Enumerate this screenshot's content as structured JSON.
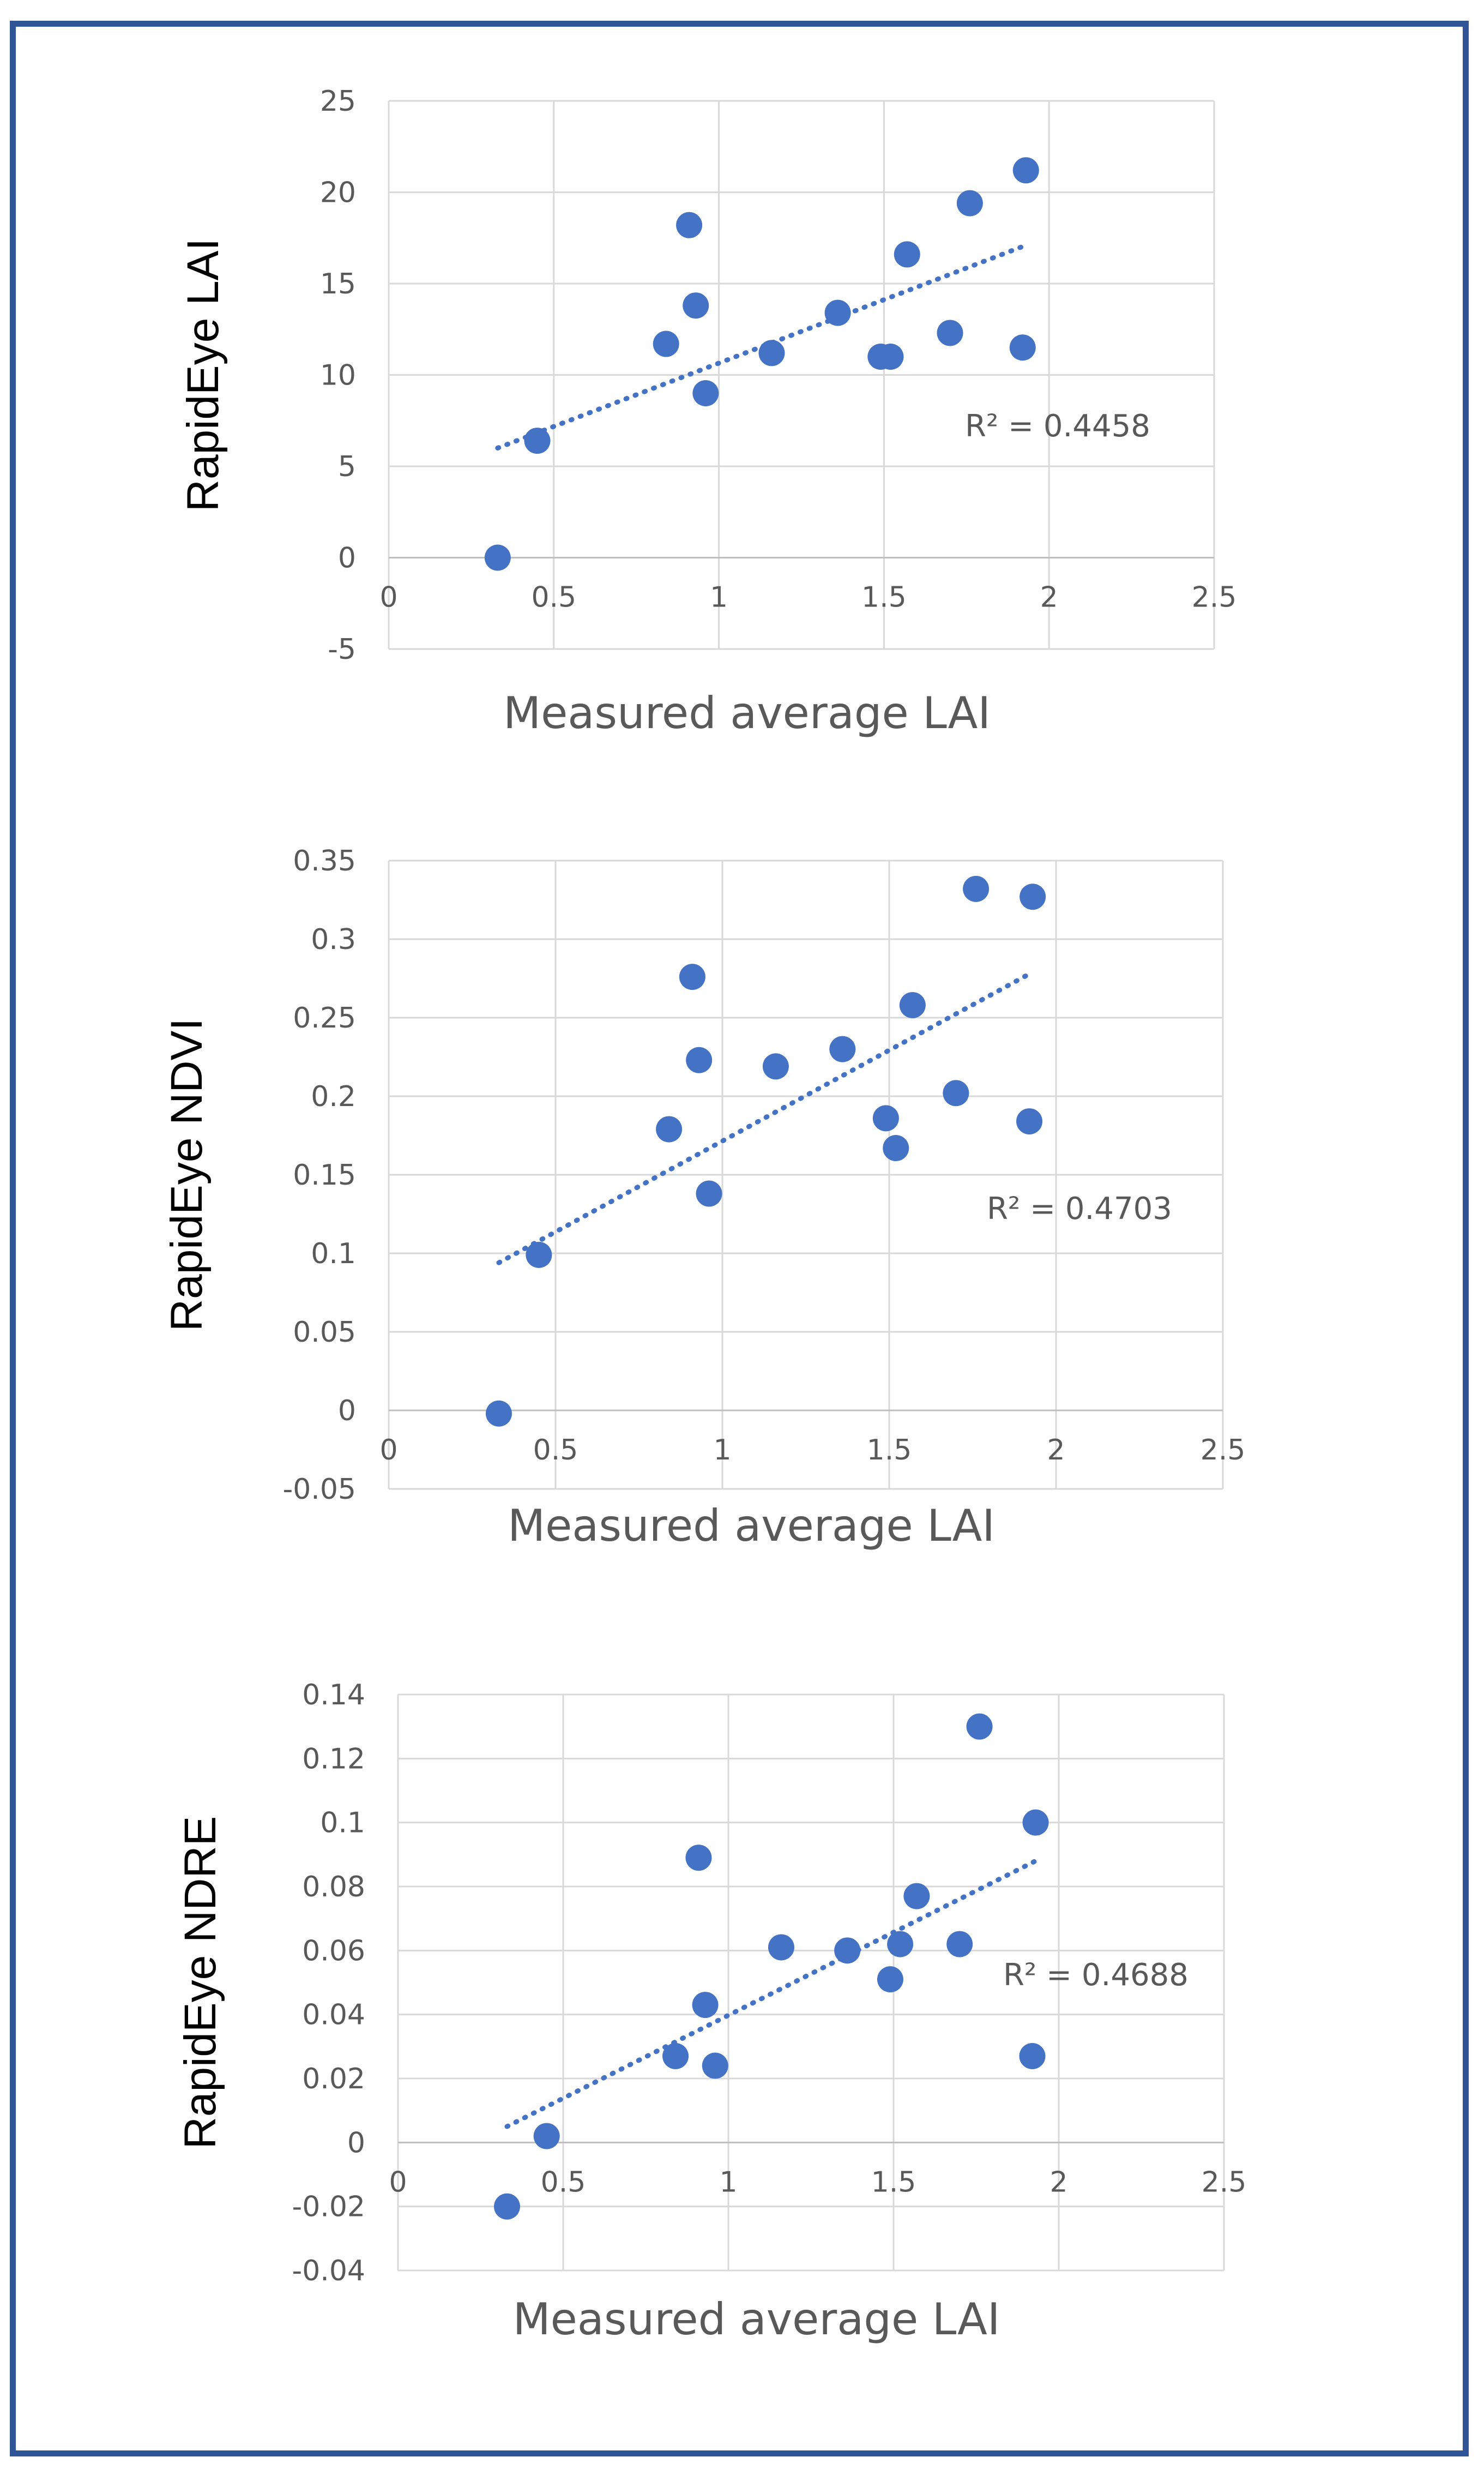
{
  "colors": {
    "frame": "#2f5597",
    "point": "#4472c4",
    "trend": "#4472c4",
    "grid": "#d9d9d9",
    "text": "#595959"
  },
  "chart_data": [
    {
      "type": "scatter",
      "title": "",
      "xlabel": "Measured average LAI",
      "ylabel": "RapidEye LAI",
      "xlim": [
        0,
        2.5
      ],
      "ylim": [
        -5,
        25
      ],
      "x_ticks": [
        "0",
        "0.5",
        "1",
        "1.5",
        "2",
        "2.5"
      ],
      "y_ticks": [
        "-5",
        "0",
        "5",
        "10",
        "15",
        "20",
        "25"
      ],
      "x": [
        0.33,
        0.45,
        0.84,
        0.91,
        0.93,
        0.96,
        1.16,
        1.36,
        1.49,
        1.52,
        1.57,
        1.7,
        1.76,
        1.92,
        1.93
      ],
      "y": [
        0.0,
        6.4,
        11.7,
        18.2,
        13.8,
        9.0,
        11.2,
        13.4,
        11.0,
        11.0,
        16.6,
        12.3,
        19.4,
        11.5,
        21.2
      ],
      "trendline": {
        "type": "linear",
        "x_range": [
          0.33,
          1.93
        ],
        "y_range": [
          6.0,
          17.1
        ],
        "style": "dotted"
      },
      "annotation": "R² = 0.4458",
      "grid": true,
      "legend": "none"
    },
    {
      "type": "scatter",
      "title": "",
      "xlabel": "Measured average LAI",
      "ylabel": "RapidEye NDVI",
      "xlim": [
        0,
        2.5
      ],
      "ylim": [
        -0.05,
        0.35
      ],
      "x_ticks": [
        "0",
        "0.5",
        "1",
        "1.5",
        "2",
        "2.5"
      ],
      "y_ticks": [
        "-0.05",
        "0",
        "0.05",
        "0.1",
        "0.15",
        "0.2",
        "0.25",
        "0.3",
        "0.35"
      ],
      "x": [
        0.33,
        0.45,
        0.84,
        0.91,
        0.93,
        0.96,
        1.16,
        1.36,
        1.49,
        1.52,
        1.57,
        1.7,
        1.76,
        1.92,
        1.93
      ],
      "y": [
        -0.002,
        0.099,
        0.179,
        0.276,
        0.223,
        0.138,
        0.219,
        0.23,
        0.186,
        0.167,
        0.258,
        0.202,
        0.332,
        0.184,
        0.327
      ],
      "trendline": {
        "type": "linear",
        "x_range": [
          0.33,
          1.93
        ],
        "y_range": [
          0.094,
          0.279
        ],
        "style": "dotted"
      },
      "annotation": "R² = 0.4703",
      "grid": true,
      "legend": "none"
    },
    {
      "type": "scatter",
      "title": "",
      "xlabel": "Measured average LAI",
      "ylabel": "RapidEye NDRE",
      "xlim": [
        0,
        2.5
      ],
      "ylim": [
        -0.04,
        0.14
      ],
      "x_ticks": [
        "0",
        "0.5",
        "1",
        "1.5",
        "2",
        "2.5"
      ],
      "y_ticks": [
        "-0.04",
        "-0.02",
        "0",
        "0.02",
        "0.04",
        "0.06",
        "0.08",
        "0.1",
        "0.12",
        "0.14"
      ],
      "x": [
        0.33,
        0.45,
        0.84,
        0.91,
        0.93,
        0.96,
        1.16,
        1.36,
        1.49,
        1.52,
        1.57,
        1.7,
        1.76,
        1.92,
        1.93
      ],
      "y": [
        -0.02,
        0.002,
        0.027,
        0.089,
        0.043,
        0.024,
        0.061,
        0.06,
        0.051,
        0.062,
        0.077,
        0.062,
        0.13,
        0.027,
        0.1
      ],
      "trendline": {
        "type": "linear",
        "x_range": [
          0.33,
          1.93
        ],
        "y_range": [
          0.005,
          0.088
        ],
        "style": "dotted"
      },
      "annotation": "R² = 0.4688",
      "grid": true,
      "legend": "none"
    }
  ]
}
